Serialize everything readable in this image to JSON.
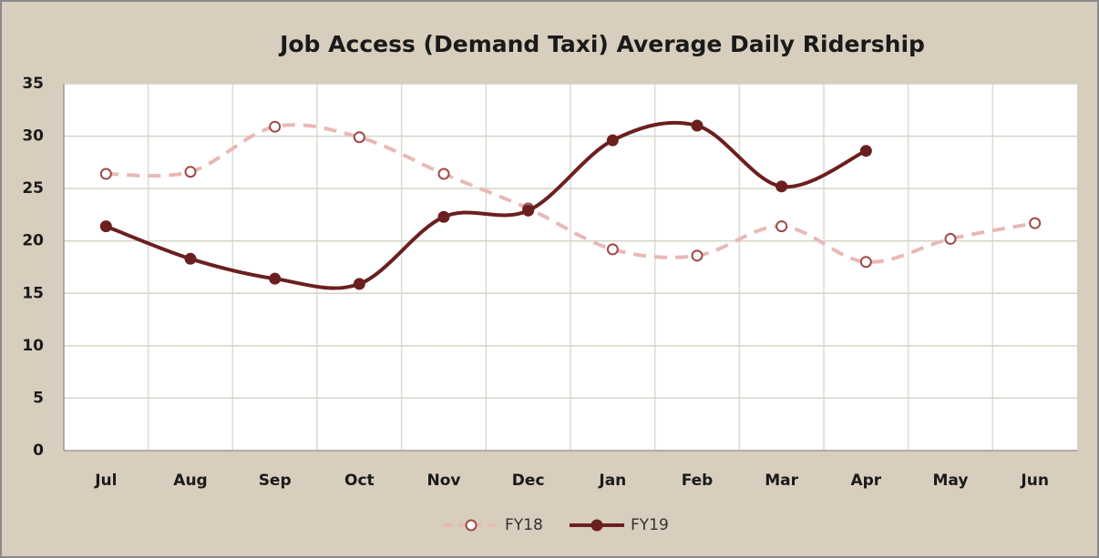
{
  "chart_data": {
    "type": "line",
    "title": "Job Access (Demand Taxi) Average Daily Ridership",
    "categories": [
      "Jul",
      "Aug",
      "Sep",
      "Oct",
      "Nov",
      "Dec",
      "Jan",
      "Feb",
      "Mar",
      "Apr",
      "May",
      "Jun"
    ],
    "series": [
      {
        "name": "FY18",
        "color": "#e8b9b5",
        "values": [
          26.4,
          26.6,
          30.9,
          29.9,
          26.4,
          23.1,
          19.2,
          18.6,
          21.4,
          18.0,
          20.2,
          21.7
        ]
      },
      {
        "name": "FY19",
        "color": "#6b1f1f",
        "values": [
          21.4,
          18.3,
          16.4,
          15.9,
          22.3,
          22.9,
          29.6,
          31.0,
          25.2,
          28.6,
          null,
          null
        ]
      }
    ],
    "ylim": [
      0,
      35
    ],
    "yticks": [
      0,
      5,
      10,
      15,
      20,
      25,
      30,
      35
    ],
    "grid": true,
    "legend": "bottom"
  }
}
